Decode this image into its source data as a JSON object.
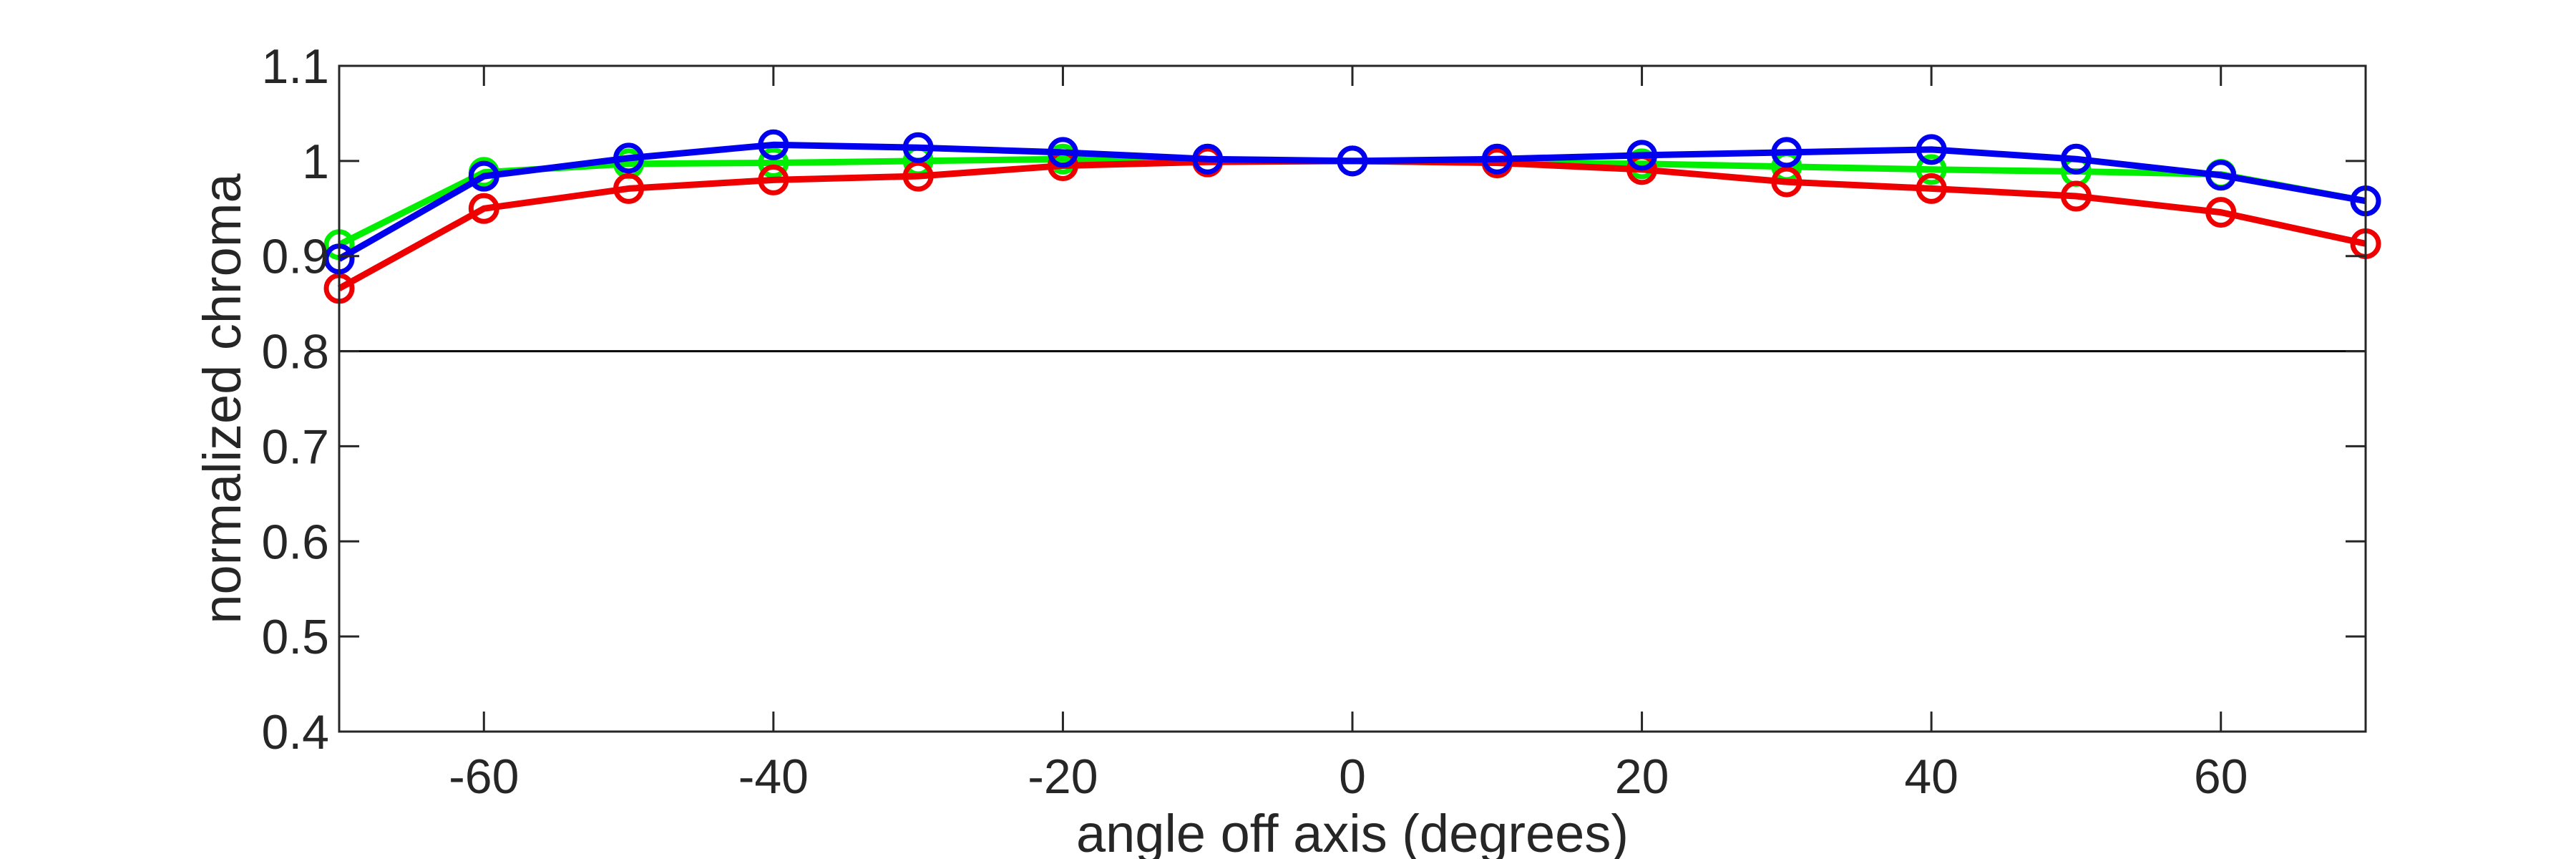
{
  "chart_data": {
    "type": "line",
    "title": "",
    "xlabel": "angle off axis (degrees)",
    "ylabel": "normalized chroma",
    "xlim": [
      -70,
      70
    ],
    "ylim": [
      0.4,
      1.1
    ],
    "xticks": [
      -60,
      -40,
      -20,
      0,
      20,
      40,
      60
    ],
    "xtick_labels": [
      "-60",
      "-40",
      "-20",
      "0",
      "20",
      "40",
      "60"
    ],
    "yticks": [
      0.4,
      0.5,
      0.6,
      0.7,
      0.8,
      0.9,
      1.0,
      1.1
    ],
    "ytick_labels": [
      "0.4",
      "0.5",
      "0.6",
      "0.7",
      "0.8",
      "0.9",
      "1",
      "1.1"
    ],
    "reference_line_y": 0.8,
    "grid": false,
    "legend": "none",
    "x": [
      -70,
      -60,
      -50,
      -40,
      -30,
      -20,
      -10,
      0,
      10,
      20,
      30,
      40,
      50,
      60,
      70
    ],
    "series": [
      {
        "color": "#00ee00",
        "values": [
          0.912,
          0.988,
          0.997,
          0.998,
          1.0,
          1.002,
          1.001,
          1.0,
          0.998,
          0.997,
          0.994,
          0.991,
          0.989,
          0.986,
          0.958
        ]
      },
      {
        "color": "#ee0000",
        "values": [
          0.866,
          0.95,
          0.971,
          0.98,
          0.984,
          0.995,
          0.999,
          1.0,
          0.998,
          0.991,
          0.978,
          0.971,
          0.963,
          0.946,
          0.913
        ]
      },
      {
        "color": "#0000ee",
        "values": [
          0.897,
          0.984,
          1.003,
          1.017,
          1.014,
          1.009,
          1.002,
          1.0,
          1.002,
          1.006,
          1.009,
          1.012,
          1.002,
          0.985,
          0.958
        ]
      }
    ]
  }
}
